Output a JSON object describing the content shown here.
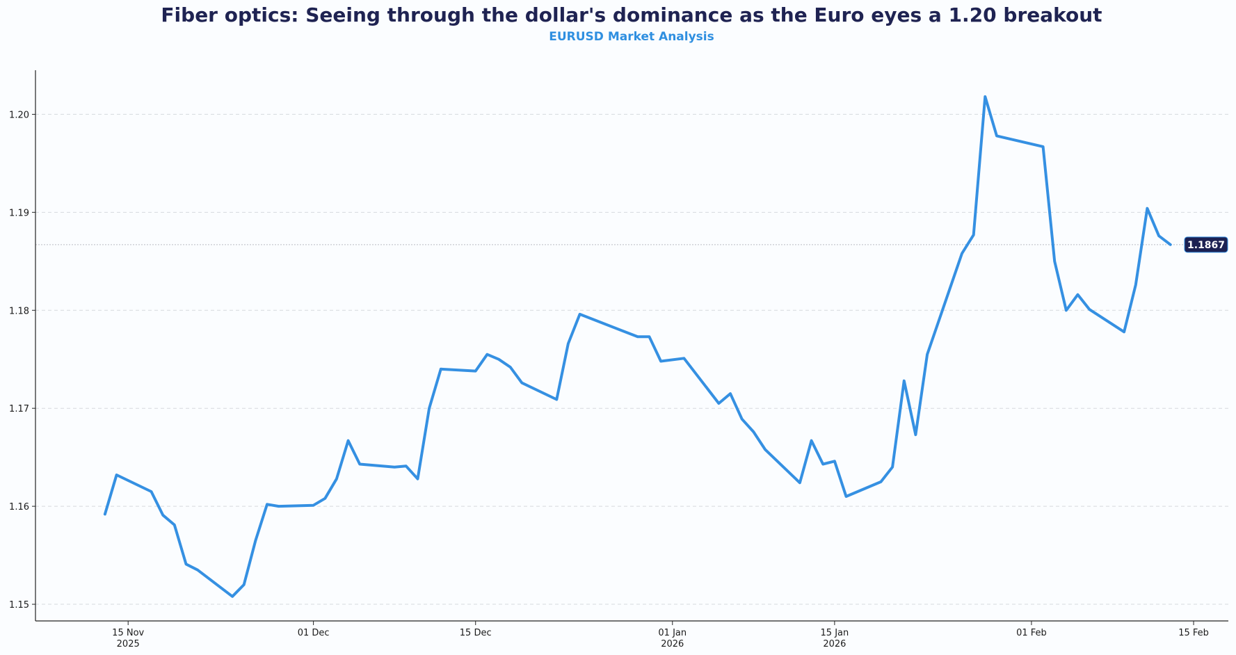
{
  "chart_data": {
    "type": "line",
    "title": "Fiber optics: Seeing through the dollar's dominance as the Euro eyes a 1.20 breakout",
    "subtitle": "EURUSD Market Analysis",
    "xlabel": "",
    "ylabel": "",
    "grid": "horizontal dashed",
    "ylim": [
      1.1483,
      1.2045
    ],
    "xlim": [
      "2025-11-07",
      "2026-02-18"
    ],
    "y_ticks": [
      "1.15",
      "1.16",
      "1.17",
      "1.18",
      "1.19",
      "1.20"
    ],
    "x_ticks": [
      {
        "date": "2025-11-15",
        "label": "15 Nov",
        "sublabel": "2025"
      },
      {
        "date": "2025-12-01",
        "label": "01 Dec",
        "sublabel": ""
      },
      {
        "date": "2025-12-15",
        "label": "15 Dec",
        "sublabel": ""
      },
      {
        "date": "2026-01-01",
        "label": "01 Jan",
        "sublabel": "2026"
      },
      {
        "date": "2026-01-15",
        "label": "15 Jan",
        "sublabel": "2026"
      },
      {
        "date": "2026-02-01",
        "label": "01 Feb",
        "sublabel": ""
      },
      {
        "date": "2026-02-15",
        "label": "15 Feb",
        "sublabel": ""
      }
    ],
    "last_value_label": "1.1867",
    "last_value": 1.1867,
    "colors": {
      "line": "#3590e2",
      "title": "#1f2352",
      "subtitle": "#2f8fe0",
      "badge_bg": "#1c2152",
      "badge_text": "#ffffff"
    },
    "series": [
      {
        "name": "EURUSD",
        "x": [
          "2025-11-13",
          "2025-11-14",
          "2025-11-17",
          "2025-11-18",
          "2025-11-19",
          "2025-11-20",
          "2025-11-21",
          "2025-11-24",
          "2025-11-25",
          "2025-11-26",
          "2025-11-27",
          "2025-11-28",
          "2025-12-01",
          "2025-12-02",
          "2025-12-03",
          "2025-12-04",
          "2025-12-05",
          "2025-12-08",
          "2025-12-09",
          "2025-12-10",
          "2025-12-11",
          "2025-12-12",
          "2025-12-15",
          "2025-12-16",
          "2025-12-17",
          "2025-12-18",
          "2025-12-19",
          "2025-12-22",
          "2025-12-23",
          "2025-12-24",
          "2025-12-29",
          "2025-12-30",
          "2025-12-31",
          "2026-01-02",
          "2026-01-05",
          "2026-01-06",
          "2026-01-07",
          "2026-01-08",
          "2026-01-09",
          "2026-01-12",
          "2026-01-13",
          "2026-01-14",
          "2026-01-15",
          "2026-01-16",
          "2026-01-19",
          "2026-01-20",
          "2026-01-21",
          "2026-01-22",
          "2026-01-23",
          "2026-01-26",
          "2026-01-27",
          "2026-01-28",
          "2026-01-29",
          "2026-02-02",
          "2026-02-03",
          "2026-02-04",
          "2026-02-05",
          "2026-02-06",
          "2026-02-09",
          "2026-02-10",
          "2026-02-11",
          "2026-02-12",
          "2026-02-13"
        ],
        "values": [
          1.1592,
          1.1632,
          1.1615,
          1.1591,
          1.1581,
          1.1541,
          1.1535,
          1.1508,
          1.152,
          1.1565,
          1.1602,
          1.16,
          1.1601,
          1.1608,
          1.1628,
          1.1667,
          1.1643,
          1.164,
          1.1641,
          1.1628,
          1.17,
          1.174,
          1.1738,
          1.1755,
          1.175,
          1.1742,
          1.1726,
          1.1709,
          1.1766,
          1.1796,
          1.1773,
          1.1773,
          1.1748,
          1.1751,
          1.1705,
          1.1715,
          1.1689,
          1.1676,
          1.1658,
          1.1624,
          1.1667,
          1.1643,
          1.1646,
          1.161,
          1.1625,
          1.164,
          1.1728,
          1.1673,
          1.1755,
          1.1858,
          1.1877,
          1.2018,
          1.1978,
          1.1967,
          1.185,
          1.18,
          1.1816,
          1.1801,
          1.1778,
          1.1826,
          1.1904,
          1.1876,
          1.1867
        ]
      }
    ]
  }
}
